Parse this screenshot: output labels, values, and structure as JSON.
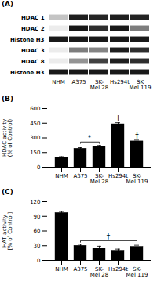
{
  "chart_data": [
    {
      "type": "heatmap",
      "title": "(A)",
      "x": [
        "NHM",
        "A375",
        "SK-\nMel 28",
        "Hs294t",
        "SK\nMel 119"
      ],
      "y": [
        "HDAC 1",
        "HDAC 2",
        "Histone H3",
        "HDAC 3",
        "HDAC 8",
        "Histone H3"
      ],
      "cells": [
        [
          0.25,
          0.95,
          0.92,
          0.95,
          0.93
        ],
        [
          0.08,
          0.98,
          0.88,
          0.97,
          0.55
        ],
        [
          0.97,
          0.97,
          0.97,
          0.97,
          0.97
        ],
        [
          0.08,
          0.55,
          0.52,
          0.95,
          0.88
        ],
        [
          0.08,
          0.45,
          0.8,
          0.95,
          0.88
        ],
        [
          0.97,
          0.97,
          0.97,
          0.97,
          0.97
        ]
      ]
    },
    {
      "type": "bar",
      "title": "(B)",
      "categories": [
        "NHM",
        "A375",
        "SK-\nMel 28",
        "Hs294t",
        "SK-\nMel 119"
      ],
      "values": [
        100,
        190,
        210,
        440,
        265
      ],
      "errors": [
        8,
        10,
        12,
        15,
        12
      ],
      "color": "#000000",
      "ylabel": "HDAC activity\n(% of Control)",
      "ylim": [
        0,
        600
      ],
      "yticks": [
        0,
        150,
        300,
        450,
        600
      ],
      "annotations": [
        {
          "text": "*",
          "categories": [
            "A375",
            "SK-\nMel 28"
          ]
        },
        {
          "text": "†",
          "categories": [
            "Hs294t"
          ]
        },
        {
          "text": "†",
          "categories": [
            "SK-\nMel 119"
          ]
        }
      ]
    },
    {
      "type": "bar",
      "title": "(C)",
      "categories": [
        "NHM",
        "A375",
        "SK-\nMel 28",
        "Hs294t",
        "SK-\nMel 119"
      ],
      "values": [
        97,
        30,
        25,
        20,
        28
      ],
      "errors": [
        3,
        3,
        4,
        3,
        3
      ],
      "color": "#000000",
      "ylabel": "HAT activity\n[% of Control]",
      "ylim": [
        0,
        120
      ],
      "yticks": [
        0,
        30,
        60,
        90,
        120
      ],
      "annotations": [
        {
          "text": "†",
          "categories": [
            "A375",
            "SK-\nMel 119"
          ]
        }
      ]
    }
  ]
}
